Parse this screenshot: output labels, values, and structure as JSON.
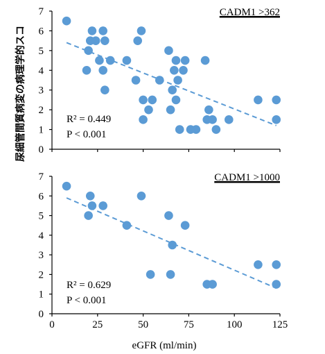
{
  "ylabel": "尿細管間質病変の病理学的スコ",
  "chart_data": [
    {
      "type": "scatter",
      "title": "CADM1 >362",
      "xlim": [
        0,
        125
      ],
      "ylim": [
        0,
        7
      ],
      "yticks": [
        0,
        1,
        2,
        3,
        4,
        5,
        6,
        7
      ],
      "r2_label": "R² = 0.449",
      "p_label": "P < 0.001",
      "trendline": {
        "x": [
          8,
          123
        ],
        "y": [
          5.4,
          1.2
        ]
      },
      "points": [
        {
          "x": 8,
          "y": 6.5
        },
        {
          "x": 19,
          "y": 4
        },
        {
          "x": 20,
          "y": 5
        },
        {
          "x": 21,
          "y": 5.5
        },
        {
          "x": 22,
          "y": 6
        },
        {
          "x": 24,
          "y": 5.5
        },
        {
          "x": 26,
          "y": 4.5
        },
        {
          "x": 28,
          "y": 6
        },
        {
          "x": 28,
          "y": 4
        },
        {
          "x": 29,
          "y": 5.5
        },
        {
          "x": 29,
          "y": 3
        },
        {
          "x": 32,
          "y": 4.5
        },
        {
          "x": 41,
          "y": 4.5
        },
        {
          "x": 46,
          "y": 3.5
        },
        {
          "x": 47,
          "y": 5.5
        },
        {
          "x": 49,
          "y": 6
        },
        {
          "x": 50,
          "y": 2.5
        },
        {
          "x": 50,
          "y": 1.5
        },
        {
          "x": 53,
          "y": 2
        },
        {
          "x": 55,
          "y": 2.5
        },
        {
          "x": 59,
          "y": 3.5
        },
        {
          "x": 64,
          "y": 5
        },
        {
          "x": 65,
          "y": 2
        },
        {
          "x": 66,
          "y": 3
        },
        {
          "x": 67,
          "y": 4
        },
        {
          "x": 68,
          "y": 4.5
        },
        {
          "x": 68,
          "y": 2.5
        },
        {
          "x": 69,
          "y": 3.5
        },
        {
          "x": 70,
          "y": 1
        },
        {
          "x": 72,
          "y": 4
        },
        {
          "x": 73,
          "y": 4.5
        },
        {
          "x": 76,
          "y": 1
        },
        {
          "x": 79,
          "y": 1
        },
        {
          "x": 84,
          "y": 4.5
        },
        {
          "x": 85,
          "y": 1.5
        },
        {
          "x": 86,
          "y": 2
        },
        {
          "x": 88,
          "y": 1.5
        },
        {
          "x": 90,
          "y": 1
        },
        {
          "x": 97,
          "y": 1.5
        },
        {
          "x": 113,
          "y": 2.5
        },
        {
          "x": 123,
          "y": 2.5
        },
        {
          "x": 123,
          "y": 1.5
        }
      ]
    },
    {
      "type": "scatter",
      "title": "CADM1 >1000",
      "xlim": [
        0,
        125
      ],
      "xticks": [
        0,
        25,
        50,
        75,
        100,
        125
      ],
      "ylim": [
        0,
        7
      ],
      "yticks": [
        0,
        1,
        2,
        3,
        4,
        5,
        6,
        7
      ],
      "xlabel": "eGFR (ml/min)",
      "r2_label": "R² = 0.629",
      "p_label": "P < 0.001",
      "trendline": {
        "x": [
          8,
          123
        ],
        "y": [
          5.9,
          1.3
        ]
      },
      "points": [
        {
          "x": 8,
          "y": 6.5
        },
        {
          "x": 20,
          "y": 5
        },
        {
          "x": 21,
          "y": 6
        },
        {
          "x": 22,
          "y": 5.5
        },
        {
          "x": 28,
          "y": 5.5
        },
        {
          "x": 41,
          "y": 4.5
        },
        {
          "x": 49,
          "y": 6
        },
        {
          "x": 54,
          "y": 2
        },
        {
          "x": 64,
          "y": 5
        },
        {
          "x": 65,
          "y": 2
        },
        {
          "x": 66,
          "y": 3.5
        },
        {
          "x": 73,
          "y": 4.5
        },
        {
          "x": 85,
          "y": 1.5
        },
        {
          "x": 88,
          "y": 1.5
        },
        {
          "x": 113,
          "y": 2.5
        },
        {
          "x": 123,
          "y": 2.5
        },
        {
          "x": 123,
          "y": 1.5
        }
      ]
    }
  ]
}
